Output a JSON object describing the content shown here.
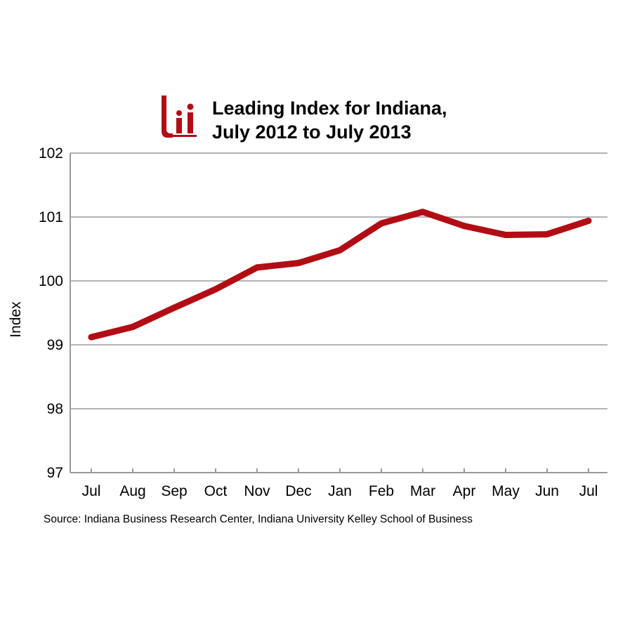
{
  "title": {
    "line1": "Leading Index for Indiana,",
    "line2": "July 2012 to July 2013"
  },
  "logo": {
    "name": "ibrc-logo",
    "color": "#b20d14"
  },
  "source": "Source: Indiana Business Research Center, Indiana University Kelley School of Business",
  "colors": {
    "line": "#b20d14",
    "grid": "#b4b4b4",
    "axis": "#999999"
  },
  "chart_data": {
    "type": "line",
    "title": "Leading Index for Indiana, July 2012 to July 2013",
    "xlabel": "",
    "ylabel": "Index",
    "categories": [
      "Jul",
      "Aug",
      "Sep",
      "Oct",
      "Nov",
      "Dec",
      "Jan",
      "Feb",
      "Mar",
      "Apr",
      "May",
      "Jun",
      "Jul"
    ],
    "series": [
      {
        "values": [
          99.12,
          99.28,
          99.58,
          99.87,
          100.21,
          100.28,
          100.48,
          100.9,
          101.08,
          100.86,
          100.72,
          100.73,
          100.94
        ]
      }
    ],
    "ylim": [
      97,
      102
    ],
    "yticks": [
      "97",
      "98",
      "99",
      "100",
      "101",
      "102"
    ],
    "grid": true,
    "legend": "none"
  }
}
